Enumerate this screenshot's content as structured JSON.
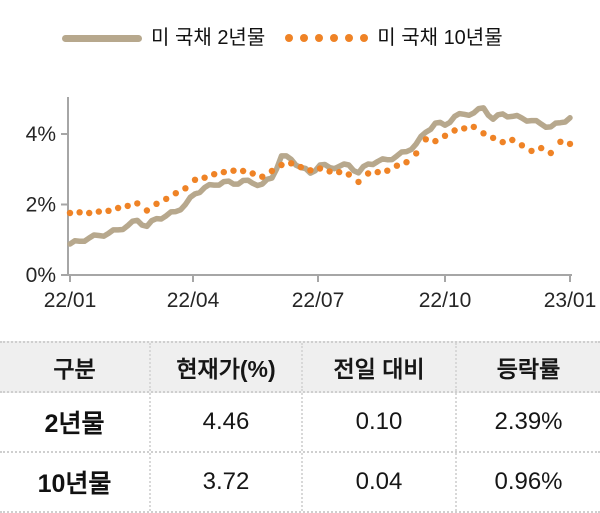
{
  "legend": {
    "items": [
      {
        "label": "미 국채 2년물",
        "style": "solid",
        "color": "#b7a88d"
      },
      {
        "label": "미 국채 10년물",
        "style": "dotted",
        "color": "#ef8326"
      }
    ]
  },
  "chart_data": {
    "type": "line",
    "title": "",
    "xlabel": "",
    "ylabel": "",
    "x_unit": "weekly, 2022-01 to 2023-01",
    "x_tick_labels": [
      "22/01",
      "22/04",
      "22/07",
      "22/10",
      "23/01"
    ],
    "y_ticks": [
      0,
      2,
      4
    ],
    "y_tick_labels": [
      "0%",
      "2%",
      "4%"
    ],
    "ylim": [
      0,
      5.2
    ],
    "grid": false,
    "legend_position": "top",
    "series": [
      {
        "name": "미 국채 2년물",
        "line_style": "solid",
        "color": "#b7a88d",
        "values": [
          0.88,
          0.96,
          1.05,
          1.12,
          1.18,
          1.28,
          1.4,
          1.55,
          1.38,
          1.6,
          1.68,
          1.8,
          2.0,
          2.3,
          2.48,
          2.55,
          2.65,
          2.58,
          2.68,
          2.6,
          2.58,
          2.75,
          3.38,
          3.28,
          3.05,
          2.89,
          3.12,
          3.05,
          3.08,
          3.12,
          2.9,
          3.15,
          3.22,
          3.27,
          3.38,
          3.5,
          3.72,
          4.05,
          4.31,
          4.25,
          4.5,
          4.56,
          4.6,
          4.74,
          4.42,
          4.57,
          4.5,
          4.45,
          4.38,
          4.28,
          4.2,
          4.32,
          4.46
        ]
      },
      {
        "name": "미 국채 10년물",
        "line_style": "dotted",
        "color": "#ef8326",
        "values": [
          1.76,
          1.78,
          1.76,
          1.8,
          1.82,
          1.9,
          1.96,
          2.03,
          1.83,
          2.02,
          2.16,
          2.32,
          2.46,
          2.7,
          2.76,
          2.86,
          2.92,
          2.96,
          2.95,
          2.88,
          2.79,
          2.95,
          3.12,
          3.17,
          3.06,
          2.97,
          3.02,
          2.94,
          2.92,
          2.85,
          2.64,
          2.88,
          2.92,
          2.96,
          3.1,
          3.2,
          3.45,
          3.85,
          3.8,
          3.95,
          4.1,
          4.16,
          4.2,
          4.02,
          3.89,
          3.77,
          3.83,
          3.68,
          3.52,
          3.6,
          3.46,
          3.78,
          3.72
        ]
      }
    ]
  },
  "table": {
    "headers": [
      "구분",
      "현재가(%)",
      "전일 대비",
      "등락률"
    ],
    "rows": [
      [
        "2년물",
        "4.46",
        "0.10",
        "2.39%"
      ],
      [
        "10년물",
        "3.72",
        "0.04",
        "0.96%"
      ]
    ]
  },
  "colors": {
    "series_2y": "#b7a88d",
    "series_10y": "#ef8326",
    "axis": "#a6a6a6",
    "tick_text": "#262626",
    "table_header_bg": "#efefef",
    "table_border": "#cfcfcf"
  }
}
